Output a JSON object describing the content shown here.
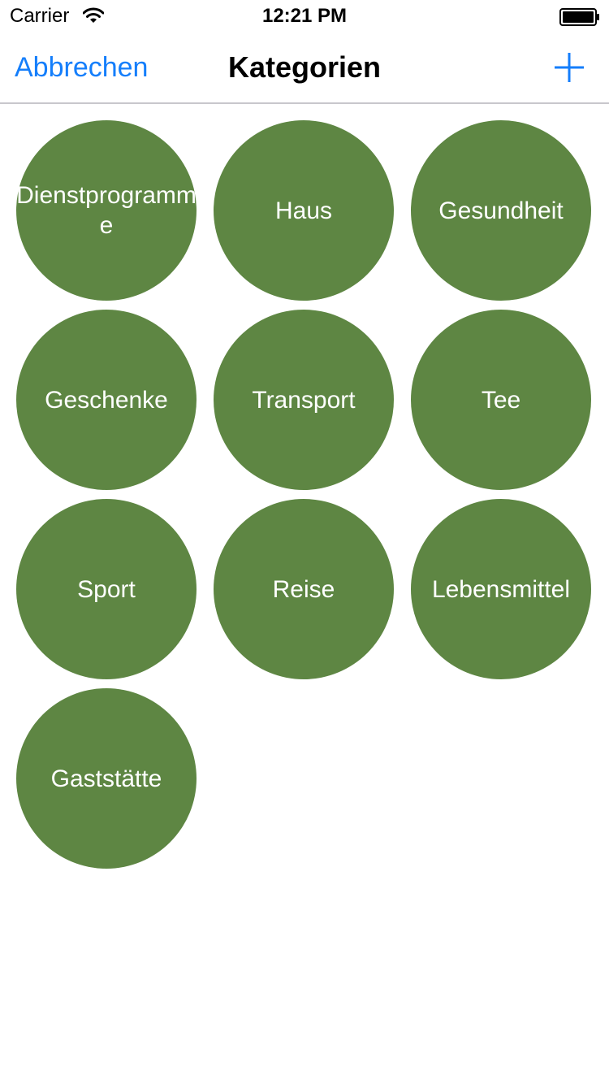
{
  "status_bar": {
    "carrier": "Carrier",
    "time": "12:21 PM",
    "icons": [
      "wifi-icon",
      "battery-icon"
    ]
  },
  "nav": {
    "cancel_label": "Abbrechen",
    "title": "Kategorien",
    "add_icon": "plus-icon"
  },
  "colors": {
    "accent": "#147efb",
    "bubble": "#5e8643",
    "bubble_text": "#ffffff"
  },
  "categories": [
    {
      "label": "Dienstprogramme"
    },
    {
      "label": "Haus"
    },
    {
      "label": "Gesundheit"
    },
    {
      "label": "Geschenke"
    },
    {
      "label": "Transport"
    },
    {
      "label": "Tee"
    },
    {
      "label": "Sport"
    },
    {
      "label": "Reise"
    },
    {
      "label": "Lebensmittel"
    },
    {
      "label": "Gaststätte"
    }
  ]
}
